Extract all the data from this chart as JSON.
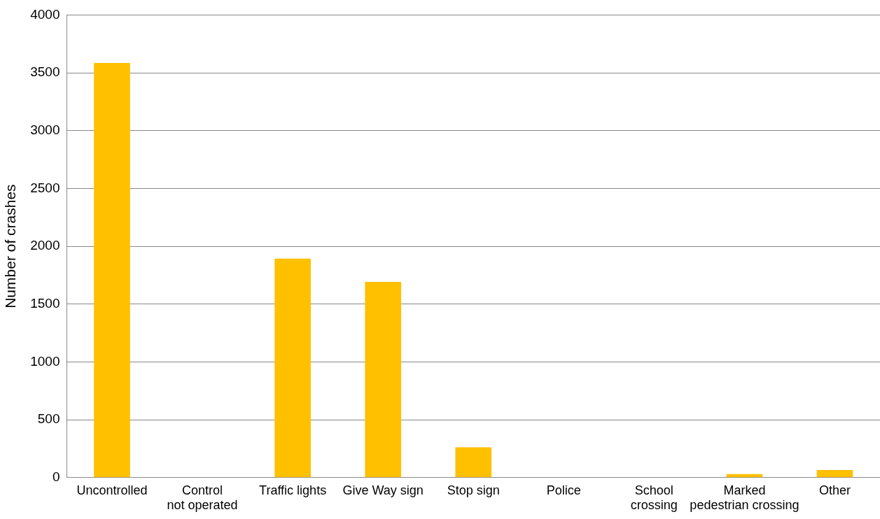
{
  "chart_data": {
    "type": "bar",
    "ylabel": "Number of crashes",
    "categories": [
      "Uncontrolled",
      "Control\nnot operated",
      "Traffic lights",
      "Give Way sign",
      "Stop sign",
      "Police",
      "School\ncrossing",
      "Marked\npedestrian crossing",
      "Other"
    ],
    "values": [
      3585,
      0,
      1893,
      1692,
      262,
      0,
      0,
      31,
      66
    ],
    "color": "#ffc000",
    "ylim": [
      0,
      4000
    ],
    "yticks": [
      0,
      500,
      1000,
      1500,
      2000,
      2500,
      3000,
      3500,
      4000
    ],
    "grid": "y",
    "legend": false
  }
}
